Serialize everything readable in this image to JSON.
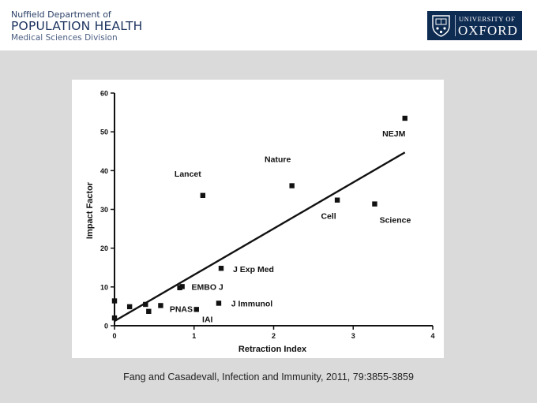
{
  "header": {
    "dept_line1": "Nuffield Department of",
    "dept_line2": "POPULATION HEALTH",
    "dept_line3": "Medical Sciences Division",
    "logo_line1": "UNIVERSITY OF",
    "logo_line2": "OXFORD",
    "logo_color": "#0e2b52",
    "crest_icon": "oxford-crest-icon"
  },
  "caption": "Fang and Casadevall, Infection and Immunity, 2011, 79:3855-3859",
  "chart_data": {
    "type": "scatter",
    "xlabel": "Retraction Index",
    "ylabel": "Impact Factor",
    "xlim": [
      0,
      4
    ],
    "ylim": [
      0,
      60
    ],
    "x_ticks": [
      0,
      1,
      2,
      3,
      4
    ],
    "y_ticks": [
      0,
      10,
      20,
      30,
      40,
      50,
      60
    ],
    "marker_color": "#111111",
    "points": [
      {
        "label": "NEJM",
        "x": 3.65,
        "y": 53.5
      },
      {
        "label": "Nature",
        "x": 2.23,
        "y": 36.1
      },
      {
        "label": "Lancet",
        "x": 1.11,
        "y": 33.6
      },
      {
        "label": "Cell",
        "x": 2.8,
        "y": 32.4
      },
      {
        "label": "Science",
        "x": 3.27,
        "y": 31.4
      },
      {
        "label": "J Exp Med",
        "x": 1.34,
        "y": 14.8
      },
      {
        "label": "EMBO J",
        "x": 0.85,
        "y": 10.1
      },
      {
        "label": "PNAS",
        "x": 0.58,
        "y": 5.2
      },
      {
        "label": "J Immunol",
        "x": 1.31,
        "y": 5.8
      },
      {
        "label": "IAI",
        "x": 1.03,
        "y": 4.2
      },
      {
        "label": "",
        "x": 0.0,
        "y": 6.4
      },
      {
        "label": "",
        "x": 0.0,
        "y": 2.0
      },
      {
        "label": "",
        "x": 0.19,
        "y": 4.9
      },
      {
        "label": "",
        "x": 0.39,
        "y": 5.5
      },
      {
        "label": "",
        "x": 0.43,
        "y": 3.7
      },
      {
        "label": "",
        "x": 0.82,
        "y": 9.8
      }
    ],
    "trendline": {
      "x": [
        0.0,
        3.65
      ],
      "y": [
        1.2,
        44.7
      ]
    }
  }
}
